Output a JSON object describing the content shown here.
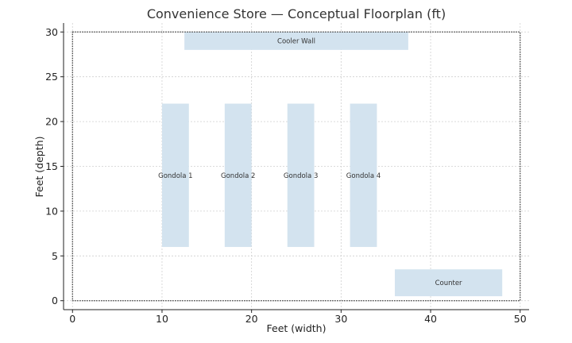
{
  "title": "Convenience Store — Conceptual Floorplan (ft)",
  "xlabel": "Feet (width)",
  "ylabel": "Feet (depth)",
  "chart_data": {
    "type": "floorplan",
    "xlim": [
      -1,
      51
    ],
    "ylim": [
      -1,
      31
    ],
    "x_ticks": [
      0,
      10,
      20,
      30,
      40,
      50
    ],
    "y_ticks": [
      0,
      5,
      10,
      15,
      20,
      25,
      30
    ],
    "grid": true,
    "store_boundary": {
      "x": 0,
      "y": 0,
      "width": 50,
      "height": 30
    },
    "fixtures": [
      {
        "label": "Cooler Wall",
        "x": 12.5,
        "y": 28,
        "width": 25,
        "height": 2
      },
      {
        "label": "Gondola 1",
        "x": 10,
        "y": 6,
        "width": 3,
        "height": 16
      },
      {
        "label": "Gondola 2",
        "x": 17,
        "y": 6,
        "width": 3,
        "height": 16
      },
      {
        "label": "Gondola 3",
        "x": 24,
        "y": 6,
        "width": 3,
        "height": 16
      },
      {
        "label": "Gondola 4",
        "x": 31,
        "y": 6,
        "width": 3,
        "height": 16
      },
      {
        "label": "Counter",
        "x": 36,
        "y": 0.5,
        "width": 12,
        "height": 3
      }
    ],
    "colors": {
      "fixture_fill": "#d3e3ef",
      "boundary": "#333333"
    }
  }
}
